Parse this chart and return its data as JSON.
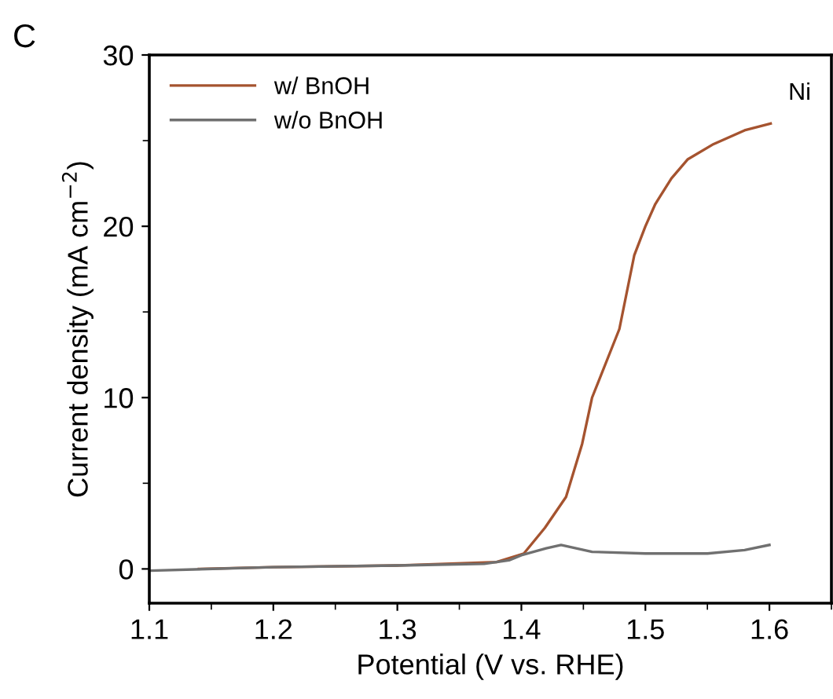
{
  "chart_data": {
    "type": "line",
    "xlabel": "Potential (V vs. RHE)",
    "ylabel": "Current density (mA cm$^{−2}$)",
    "annotations": [
      "C",
      "Ni"
    ],
    "series": [
      {
        "name": "w/ BnOH",
        "color": "#a5532f",
        "x": [
          1.14,
          1.2,
          1.3,
          1.38,
          1.402,
          1.419,
          1.436,
          1.449,
          1.457,
          1.479,
          1.491,
          1.5,
          1.508,
          1.521,
          1.534,
          1.555,
          1.58,
          1.601
        ],
        "values": [
          0.0,
          0.1,
          0.2,
          0.4,
          0.9,
          2.4,
          4.2,
          7.3,
          10,
          14,
          18.3,
          20,
          21.3,
          22.8,
          23.9,
          24.8,
          25.6,
          26.0
        ]
      },
      {
        "name": "w/o BnOH",
        "color": "#707070",
        "x": [
          1.1,
          1.2,
          1.3,
          1.37,
          1.39,
          1.4,
          1.42,
          1.432,
          1.457,
          1.5,
          1.55,
          1.58,
          1.6
        ],
        "values": [
          -0.1,
          0.1,
          0.2,
          0.3,
          0.5,
          0.8,
          1.2,
          1.4,
          1.0,
          0.9,
          0.9,
          1.1,
          1.4
        ]
      }
    ],
    "xlim": [
      1.1,
      1.65
    ],
    "xticks": [
      1.1,
      1.2,
      1.3,
      1.4,
      1.5,
      1.6
    ],
    "ylim": [
      -2,
      30
    ],
    "yticks": [
      0,
      10,
      20,
      30
    ],
    "grid": false,
    "legend": "top left",
    "marker": "none",
    "line_style": "solid"
  }
}
